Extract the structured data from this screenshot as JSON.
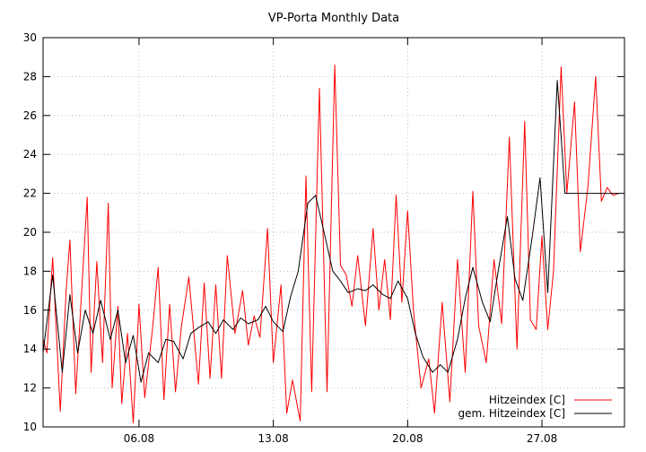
{
  "chart_data": {
    "type": "line",
    "title": "VP-Porta Monthly Data",
    "xlabel": "",
    "ylabel": "",
    "x_range": [
      "01.08",
      "31.08"
    ],
    "x_ticks": [
      "06.08",
      "13.08",
      "20.08",
      "27.08"
    ],
    "ylim": [
      10,
      30
    ],
    "y_ticks": [
      10,
      12,
      14,
      16,
      18,
      20,
      22,
      24,
      26,
      28,
      30
    ],
    "grid": true,
    "legend_position": "bottom-right",
    "series": [
      {
        "name": "Hitzeindex [C]",
        "color": "#ff0000",
        "x": [
          1.0,
          1.2,
          1.5,
          1.9,
          2.2,
          2.4,
          2.7,
          3.0,
          3.3,
          3.5,
          3.8,
          4.1,
          4.4,
          4.6,
          4.9,
          5.1,
          5.4,
          5.7,
          6.0,
          6.3,
          6.7,
          7.0,
          7.3,
          7.6,
          7.9,
          8.2,
          8.6,
          9.1,
          9.4,
          9.7,
          10.0,
          10.3,
          10.6,
          11.0,
          11.4,
          11.7,
          12.0,
          12.3,
          12.7,
          13.0,
          13.4,
          13.7,
          14.0,
          14.4,
          14.7,
          15.0,
          15.4,
          15.8,
          16.2,
          16.5,
          16.8,
          17.1,
          17.4,
          17.8,
          18.2,
          18.5,
          18.8,
          19.1,
          19.4,
          19.7,
          20.0,
          20.3,
          20.7,
          21.1,
          21.4,
          21.8,
          22.2,
          22.6,
          23.0,
          23.4,
          23.7,
          24.1,
          24.5,
          24.9,
          25.3,
          25.7,
          26.1,
          26.4,
          26.7,
          27.0,
          27.3,
          27.6,
          28.0,
          28.3,
          28.7,
          29.0,
          29.4,
          29.8,
          30.1,
          30.4,
          30.7,
          31.0
        ],
        "values": [
          14.5,
          13.8,
          18.7,
          10.8,
          17.0,
          19.6,
          11.7,
          16.8,
          21.8,
          12.8,
          18.5,
          13.3,
          21.5,
          12.0,
          16.2,
          11.2,
          14.8,
          10.2,
          16.3,
          11.5,
          15.0,
          18.2,
          11.4,
          16.3,
          11.8,
          15.1,
          17.7,
          12.2,
          17.4,
          12.5,
          17.3,
          12.5,
          18.8,
          14.8,
          17.0,
          14.2,
          15.7,
          14.6,
          20.2,
          13.3,
          17.3,
          10.7,
          12.4,
          10.3,
          22.9,
          11.8,
          27.4,
          11.8,
          28.6,
          18.3,
          17.8,
          16.2,
          18.8,
          15.2,
          20.2,
          16.0,
          18.6,
          15.5,
          21.9,
          16.4,
          21.1,
          16.0,
          12.0,
          13.5,
          10.7,
          16.4,
          11.3,
          18.6,
          12.8,
          22.1,
          15.2,
          13.3,
          18.6,
          15.3,
          24.9,
          14.0,
          25.7,
          15.5,
          15.0,
          19.8,
          15.0,
          18.0,
          28.5,
          22.0,
          26.7,
          19.0,
          22.4,
          28.0,
          21.6,
          22.3,
          21.9,
          22.0
        ]
      },
      {
        "name": "gem. Hitzeindex [C]",
        "color": "#000000",
        "x": [
          1.0,
          1.5,
          2.0,
          2.4,
          2.8,
          3.2,
          3.6,
          4.0,
          4.5,
          4.9,
          5.3,
          5.7,
          6.1,
          6.5,
          7.0,
          7.4,
          7.8,
          8.3,
          8.7,
          9.1,
          9.6,
          10.0,
          10.4,
          10.9,
          11.3,
          11.7,
          12.2,
          12.6,
          13.0,
          13.5,
          13.9,
          14.3,
          14.8,
          15.2,
          15.6,
          16.1,
          16.5,
          16.9,
          17.4,
          17.8,
          18.2,
          18.7,
          19.1,
          19.5,
          20.0,
          20.4,
          20.8,
          21.3,
          21.7,
          22.1,
          22.6,
          23.0,
          23.4,
          23.9,
          24.3,
          24.7,
          25.2,
          25.6,
          26.0,
          26.5,
          26.9,
          27.3,
          27.8,
          28.2,
          28.6,
          29.1,
          29.5,
          29.9,
          30.4,
          30.7,
          31.0
        ],
        "values": [
          13.8,
          17.8,
          12.8,
          16.8,
          13.8,
          16.0,
          14.8,
          16.5,
          14.5,
          16.0,
          13.3,
          14.7,
          12.3,
          13.8,
          13.3,
          14.5,
          14.4,
          13.5,
          14.8,
          15.1,
          15.4,
          14.8,
          15.5,
          15.0,
          15.6,
          15.3,
          15.5,
          16.2,
          15.4,
          14.9,
          16.7,
          18.0,
          21.5,
          21.9,
          20.2,
          18.0,
          17.5,
          16.9,
          17.1,
          17.0,
          17.3,
          16.8,
          16.6,
          17.5,
          16.6,
          14.8,
          13.6,
          12.8,
          13.2,
          12.8,
          14.5,
          16.6,
          18.2,
          16.4,
          15.4,
          17.9,
          20.8,
          17.6,
          16.5,
          19.8,
          22.8,
          16.9,
          27.8,
          22.0,
          22.0,
          22.0,
          22.0,
          22.0,
          22.0,
          22.0,
          22.0
        ]
      }
    ]
  }
}
